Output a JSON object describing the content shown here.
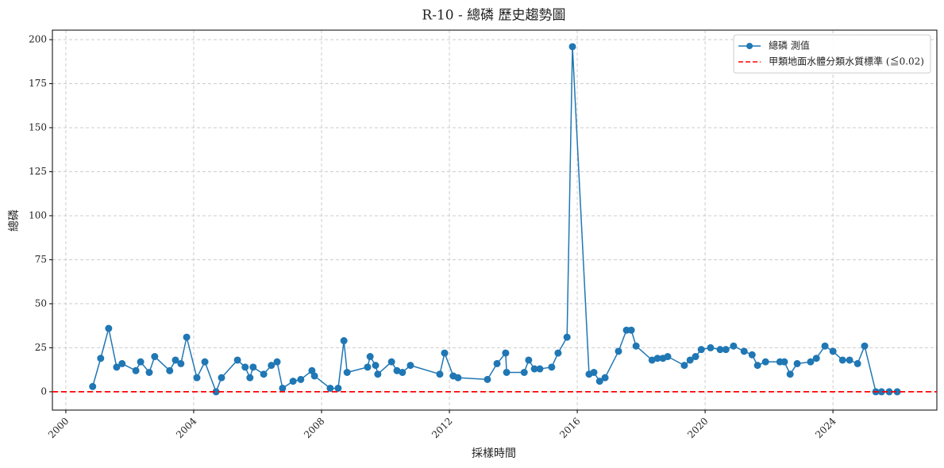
{
  "chart_data": {
    "type": "line",
    "title": "R-10 - 總磷 歷史趨勢圖",
    "xlabel": "採樣時間",
    "ylabel": "總磷",
    "xlim": [
      1999.58,
      2027.25
    ],
    "xticks": [
      2000,
      2004,
      2008,
      2012,
      2016,
      2020,
      2024
    ],
    "ylim": [
      -10.4,
      205.4
    ],
    "yticks": [
      0,
      25,
      50,
      75,
      100,
      125,
      150,
      175,
      200
    ],
    "grid": true,
    "legend": "upper right",
    "x": [
      2000.84,
      2001.09,
      2001.34,
      2001.59,
      2001.76,
      2002.19,
      2002.34,
      2002.61,
      2002.78,
      2003.25,
      2003.43,
      2003.6,
      2003.78,
      2004.1,
      2004.35,
      2004.7,
      2004.87,
      2005.37,
      2005.61,
      2005.76,
      2005.86,
      2006.19,
      2006.43,
      2006.61,
      2006.78,
      2007.11,
      2007.35,
      2007.7,
      2007.78,
      2008.27,
      2008.52,
      2008.7,
      2008.8,
      2009.44,
      2009.52,
      2009.69,
      2009.76,
      2010.19,
      2010.36,
      2010.53,
      2010.78,
      2011.7,
      2011.85,
      2012.12,
      2012.27,
      2013.19,
      2013.49,
      2013.76,
      2013.79,
      2014.34,
      2014.48,
      2014.66,
      2014.83,
      2015.2,
      2015.4,
      2015.68,
      2015.85,
      2016.37,
      2016.52,
      2016.7,
      2016.87,
      2017.29,
      2017.54,
      2017.69,
      2017.84,
      2018.34,
      2018.51,
      2018.68,
      2018.83,
      2019.35,
      2019.53,
      2019.7,
      2019.88,
      2020.17,
      2020.47,
      2020.65,
      2020.89,
      2021.22,
      2021.47,
      2021.64,
      2021.89,
      2022.34,
      2022.48,
      2022.66,
      2022.88,
      2023.3,
      2023.48,
      2023.75,
      2024.0,
      2024.3,
      2024.52,
      2024.77,
      2024.99,
      2025.34,
      2025.52,
      2025.76,
      2026.01
    ],
    "series": [
      {
        "name": "總磷 測值",
        "color": "#1f77b4",
        "values": [
          3,
          19,
          36,
          14,
          16,
          12,
          17,
          11,
          20,
          12,
          18,
          16,
          31,
          8,
          17,
          0,
          8,
          18,
          14,
          8,
          14,
          10,
          15,
          17,
          2,
          6,
          7,
          12,
          9,
          2,
          2,
          29,
          11,
          14,
          20,
          15,
          10,
          17,
          12,
          11,
          15,
          10,
          22,
          9,
          8,
          7,
          16,
          22,
          11,
          11,
          18,
          13,
          13,
          14,
          22,
          31,
          196,
          10,
          11,
          6,
          8,
          23,
          35,
          35,
          26,
          18,
          19,
          19,
          20,
          15,
          18,
          20,
          24,
          25,
          24,
          24,
          26,
          23,
          21,
          15,
          17,
          17,
          17,
          10,
          16,
          17,
          19,
          26,
          23,
          18,
          18,
          16,
          26,
          0,
          0,
          0,
          0
        ]
      }
    ],
    "threshold": {
      "name": "甲類地面水體分類水質標準 (≦0.02)",
      "value": 0.02,
      "color": "#ff0000"
    }
  }
}
